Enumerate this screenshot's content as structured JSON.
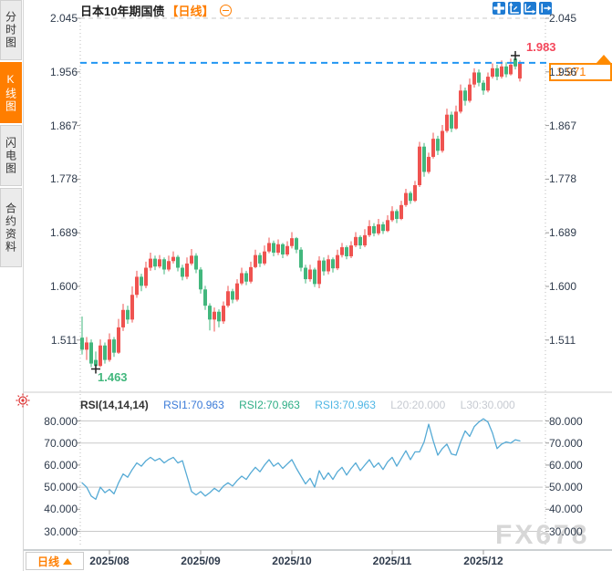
{
  "window": {
    "title": "日本10年期国债",
    "periodicity": "【日线】"
  },
  "toolbar": {
    "icons": [
      "crosshair-move-icon",
      "scale-y-axis-icon",
      "scale-x-axis-icon",
      "pan-to-latest-icon"
    ]
  },
  "sidebar": {
    "items": [
      {
        "label": "分时图",
        "active": false
      },
      {
        "label": "K线图",
        "active": true
      },
      {
        "label": "闪电图",
        "active": false
      },
      {
        "label": "合约资料",
        "active": false
      }
    ]
  },
  "price_panel": {
    "current_price": "1.971",
    "high_label": "1.983",
    "low_label": "1.463",
    "axis_labels": [
      "2.045",
      "1.956",
      "1.867",
      "1.778",
      "1.689",
      "1.600",
      "1.511"
    ]
  },
  "rsi_panel": {
    "header": {
      "name": "RSI(14,14,14)",
      "rsi1": "RSI1:70.963",
      "rsi2": "RSI2:70.963",
      "rsi3": "RSI3:70.963",
      "l20": "L20:20.000",
      "l30": "L30:30.000"
    },
    "axis_labels": [
      "80.000",
      "70.000",
      "60.000",
      "50.000",
      "40.000",
      "30.000"
    ]
  },
  "bottom_bar": {
    "period_label": "日线",
    "dates": [
      "2025/08",
      "2025/09",
      "2025/10",
      "2025/11",
      "2025/12"
    ]
  },
  "watermark": "FX678",
  "colors": {
    "up": "#ef5350",
    "down": "#42b77d",
    "accent": "#ff7e00",
    "price_line": "#2196f3",
    "rsi_line": "#55aad5",
    "grid": "#c9c9c9",
    "axis_text": "#2f3b4c",
    "high_label": "#f4475b",
    "low_label": "#42b77d",
    "toolbar_icon": "#1d7ad2"
  },
  "chart_data": {
    "type": "candlestick+rsi",
    "title": "日本10年期国债",
    "interval": "日线",
    "price_axis": {
      "ticks": [
        2.045,
        1.956,
        1.867,
        1.778,
        1.689,
        1.6,
        1.511
      ],
      "top_value": 2.045,
      "tick_step": 0.089
    },
    "current_price": 1.971,
    "high_marker": 1.983,
    "low_marker": 1.463,
    "x_ticks": {
      "labels": [
        "2025/08",
        "2025/09",
        "2025/10",
        "2025/11",
        "2025/12"
      ],
      "candle_index": [
        6,
        26,
        46,
        68,
        88
      ]
    },
    "candles_ohlc": [
      [
        1.515,
        1.55,
        1.487,
        1.495
      ],
      [
        1.495,
        1.516,
        1.478,
        1.507
      ],
      [
        1.507,
        1.512,
        1.466,
        1.472
      ],
      [
        1.478,
        1.492,
        1.463,
        1.468
      ],
      [
        1.468,
        1.512,
        1.466,
        1.502
      ],
      [
        1.502,
        1.507,
        1.472,
        1.478
      ],
      [
        1.478,
        1.522,
        1.475,
        1.512
      ],
      [
        1.512,
        1.516,
        1.483,
        1.49
      ],
      [
        1.49,
        1.546,
        1.488,
        1.532
      ],
      [
        1.532,
        1.571,
        1.526,
        1.561
      ],
      [
        1.561,
        1.568,
        1.538,
        1.545
      ],
      [
        1.545,
        1.6,
        1.54,
        1.586
      ],
      [
        1.586,
        1.626,
        1.581,
        1.616
      ],
      [
        1.616,
        1.621,
        1.592,
        1.601
      ],
      [
        1.601,
        1.641,
        1.597,
        1.631
      ],
      [
        1.631,
        1.656,
        1.626,
        1.646
      ],
      [
        1.646,
        1.651,
        1.627,
        1.633
      ],
      [
        1.633,
        1.652,
        1.63,
        1.645
      ],
      [
        1.645,
        1.648,
        1.62,
        1.628
      ],
      [
        1.628,
        1.651,
        1.625,
        1.642
      ],
      [
        1.642,
        1.658,
        1.638,
        1.649
      ],
      [
        1.649,
        1.652,
        1.625,
        1.631
      ],
      [
        1.631,
        1.636,
        1.61,
        1.616
      ],
      [
        1.616,
        1.648,
        1.612,
        1.638
      ],
      [
        1.638,
        1.662,
        1.635,
        1.651
      ],
      [
        1.651,
        1.655,
        1.622,
        1.628
      ],
      [
        1.628,
        1.632,
        1.588,
        1.595
      ],
      [
        1.595,
        1.601,
        1.561,
        1.568
      ],
      [
        1.568,
        1.572,
        1.527,
        1.545
      ],
      [
        1.545,
        1.565,
        1.525,
        1.558
      ],
      [
        1.558,
        1.562,
        1.532,
        1.542
      ],
      [
        1.542,
        1.575,
        1.538,
        1.568
      ],
      [
        1.568,
        1.601,
        1.565,
        1.592
      ],
      [
        1.592,
        1.596,
        1.572,
        1.578
      ],
      [
        1.578,
        1.612,
        1.575,
        1.605
      ],
      [
        1.605,
        1.631,
        1.602,
        1.622
      ],
      [
        1.622,
        1.626,
        1.602,
        1.608
      ],
      [
        1.608,
        1.641,
        1.605,
        1.632
      ],
      [
        1.632,
        1.661,
        1.63,
        1.652
      ],
      [
        1.652,
        1.656,
        1.632,
        1.638
      ],
      [
        1.638,
        1.668,
        1.635,
        1.658
      ],
      [
        1.658,
        1.681,
        1.655,
        1.672
      ],
      [
        1.672,
        1.676,
        1.65,
        1.656
      ],
      [
        1.656,
        1.678,
        1.652,
        1.67
      ],
      [
        1.67,
        1.672,
        1.647,
        1.653
      ],
      [
        1.653,
        1.675,
        1.65,
        1.667
      ],
      [
        1.667,
        1.69,
        1.663,
        1.68
      ],
      [
        1.68,
        1.682,
        1.655,
        1.661
      ],
      [
        1.661,
        1.665,
        1.625,
        1.631
      ],
      [
        1.631,
        1.636,
        1.605,
        1.612
      ],
      [
        1.612,
        1.636,
        1.608,
        1.628
      ],
      [
        1.628,
        1.631,
        1.599,
        1.604
      ],
      [
        1.604,
        1.65,
        1.597,
        1.643
      ],
      [
        1.643,
        1.648,
        1.618,
        1.625
      ],
      [
        1.625,
        1.652,
        1.62,
        1.645
      ],
      [
        1.645,
        1.648,
        1.623,
        1.63
      ],
      [
        1.63,
        1.661,
        1.627,
        1.652
      ],
      [
        1.652,
        1.672,
        1.648,
        1.665
      ],
      [
        1.665,
        1.668,
        1.645,
        1.65
      ],
      [
        1.65,
        1.675,
        1.647,
        1.668
      ],
      [
        1.668,
        1.69,
        1.665,
        1.682
      ],
      [
        1.682,
        1.685,
        1.662,
        1.668
      ],
      [
        1.668,
        1.695,
        1.665,
        1.685
      ],
      [
        1.685,
        1.71,
        1.682,
        1.7
      ],
      [
        1.7,
        1.705,
        1.683,
        1.688
      ],
      [
        1.688,
        1.712,
        1.685,
        1.703
      ],
      [
        1.703,
        1.707,
        1.687,
        1.692
      ],
      [
        1.692,
        1.718,
        1.69,
        1.71
      ],
      [
        1.71,
        1.733,
        1.707,
        1.725
      ],
      [
        1.725,
        1.728,
        1.705,
        1.712
      ],
      [
        1.712,
        1.742,
        1.71,
        1.735
      ],
      [
        1.735,
        1.762,
        1.732,
        1.755
      ],
      [
        1.755,
        1.758,
        1.737,
        1.742
      ],
      [
        1.742,
        1.775,
        1.74,
        1.768
      ],
      [
        1.768,
        1.84,
        1.765,
        1.832
      ],
      [
        1.832,
        1.838,
        1.782,
        1.79
      ],
      [
        1.79,
        1.822,
        1.787,
        1.815
      ],
      [
        1.815,
        1.855,
        1.812,
        1.845
      ],
      [
        1.845,
        1.85,
        1.818,
        1.825
      ],
      [
        1.825,
        1.868,
        1.822,
        1.858
      ],
      [
        1.858,
        1.895,
        1.855,
        1.885
      ],
      [
        1.885,
        1.89,
        1.856,
        1.862
      ],
      [
        1.862,
        1.9,
        1.86,
        1.89
      ],
      [
        1.89,
        1.935,
        1.887,
        1.925
      ],
      [
        1.925,
        1.93,
        1.9,
        1.908
      ],
      [
        1.908,
        1.945,
        1.905,
        1.935
      ],
      [
        1.935,
        1.962,
        1.93,
        1.955
      ],
      [
        1.955,
        1.96,
        1.932,
        1.938
      ],
      [
        1.938,
        1.942,
        1.918,
        1.925
      ],
      [
        1.925,
        1.955,
        1.922,
        1.948
      ],
      [
        1.948,
        1.97,
        1.945,
        1.962
      ],
      [
        1.962,
        1.968,
        1.942,
        1.948
      ],
      [
        1.948,
        1.975,
        1.945,
        1.965
      ],
      [
        1.965,
        1.972,
        1.947,
        1.952
      ],
      [
        1.952,
        1.978,
        1.95,
        1.968
      ],
      [
        1.978,
        1.983,
        1.96,
        1.965
      ],
      [
        1.945,
        1.975,
        1.94,
        1.971
      ]
    ],
    "rsi": {
      "params": [
        14,
        14,
        14
      ],
      "last": 70.963,
      "levels_drawn": [
        80,
        70,
        50,
        30
      ],
      "axis_ticks": [
        80,
        70,
        60,
        50,
        40,
        30
      ],
      "values": [
        52,
        50,
        46,
        44.5,
        50,
        47.5,
        49,
        47,
        52,
        56,
        54.5,
        58,
        61,
        59.5,
        62,
        63.5,
        62,
        63,
        61,
        62.5,
        63.5,
        61,
        62,
        55,
        48,
        46.5,
        48,
        46,
        47.5,
        49.5,
        48,
        50.5,
        52,
        50.5,
        53,
        55,
        53.5,
        56.5,
        59,
        57,
        60,
        62.5,
        59.5,
        61,
        58.5,
        60.5,
        62.5,
        58.5,
        55,
        51.5,
        54,
        50,
        57.5,
        53.5,
        56.5,
        53.5,
        57,
        59,
        55.5,
        58.5,
        61,
        57.5,
        60,
        62.5,
        59,
        61,
        58,
        61.5,
        63.5,
        59.5,
        63,
        66.5,
        62.5,
        66,
        66,
        70.5,
        78.5,
        71,
        64.5,
        67.5,
        69.5,
        65,
        64.5,
        70.5,
        75.5,
        73,
        77.5,
        79.5,
        81,
        79.5,
        74.5,
        67.5,
        69.5,
        70.5,
        70,
        71.5,
        70.963
      ]
    }
  }
}
